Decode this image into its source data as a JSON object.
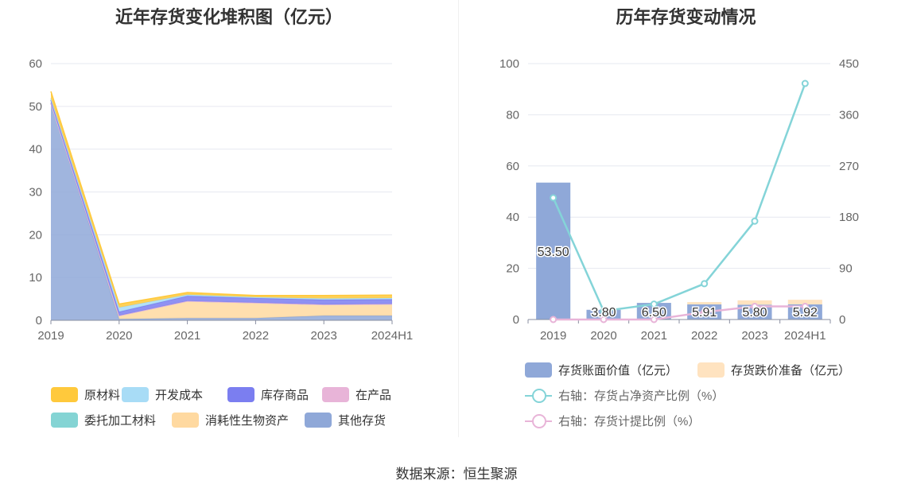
{
  "left": {
    "title": "近年存货变化堆积图（亿元）",
    "chart_data": {
      "type": "area",
      "stacked": true,
      "categories": [
        "2019",
        "2020",
        "2021",
        "2022",
        "2023",
        "2024H1"
      ],
      "ylim": [
        0,
        60
      ],
      "yticks": [
        0,
        10,
        20,
        30,
        40,
        50,
        60
      ],
      "grid": true,
      "legend_position": "bottom",
      "series": [
        {
          "name": "其他存货",
          "color": "#8fa8d8",
          "values": [
            50.8,
            0.3,
            0.5,
            0.5,
            1.1,
            1.1
          ]
        },
        {
          "name": "消耗性生物资产",
          "color": "#ffd9a0",
          "values": [
            0.0,
            0.8,
            4.0,
            3.6,
            2.6,
            2.7
          ]
        },
        {
          "name": "委托加工材料",
          "color": "#84d4d4",
          "values": [
            0.0,
            0.0,
            0.0,
            0.0,
            0.0,
            0.0
          ]
        },
        {
          "name": "在产品",
          "color": "#e8b4d8",
          "values": [
            0.0,
            0.0,
            0.0,
            0.0,
            0.0,
            0.0
          ]
        },
        {
          "name": "库存商品",
          "color": "#7b7ef0",
          "values": [
            0.7,
            0.9,
            1.2,
            1.1,
            1.1,
            1.1
          ]
        },
        {
          "name": "开发成本",
          "color": "#a8dcf6",
          "values": [
            0.4,
            1.0,
            0.3,
            0.2,
            0.3,
            0.3
          ]
        },
        {
          "name": "原材料",
          "color": "#ffc93c",
          "values": [
            1.6,
            0.8,
            0.5,
            0.4,
            0.7,
            0.7
          ]
        }
      ]
    },
    "legend": [
      "原材料",
      "开发成本",
      "库存商品",
      "在产品",
      "委托加工材料",
      "消耗性生物资产",
      "其他存货"
    ]
  },
  "right": {
    "title": "历年存货变动情况",
    "chart_data": {
      "type": "bar",
      "categories": [
        "2019",
        "2020",
        "2021",
        "2022",
        "2023",
        "2024H1"
      ],
      "ylim": [
        0,
        100
      ],
      "yticks": [
        0,
        20,
        40,
        60,
        80,
        100
      ],
      "y2lim": [
        0,
        450
      ],
      "y2ticks": [
        0,
        90,
        180,
        270,
        360,
        450
      ],
      "grid": true,
      "legend_position": "bottom",
      "series": [
        {
          "name": "存货账面价值（亿元）",
          "type": "bar",
          "color": "#8fa8d8",
          "values": [
            53.5,
            3.8,
            6.5,
            5.91,
            5.8,
            5.92
          ],
          "labels": [
            "53.50",
            "3.80",
            "6.50",
            "5.91",
            "5.80",
            "5.92"
          ]
        },
        {
          "name": "存货跌价准备（亿元）",
          "type": "bar",
          "color": "#ffe3c0",
          "values": [
            0.0,
            0.0,
            0.0,
            0.9,
            1.7,
            1.8
          ]
        },
        {
          "name": "右轴：存货占净资产比例（%）",
          "type": "line",
          "axis": "right",
          "color": "#84d4d8",
          "values": [
            214,
            15,
            27,
            63,
            173,
            415
          ]
        },
        {
          "name": "右轴：存货计提比例（%）",
          "type": "line",
          "axis": "right",
          "color": "#e8b4d8",
          "values": [
            0,
            0,
            0,
            13,
            23,
            23
          ]
        }
      ]
    }
  },
  "source": "数据来源：恒生聚源"
}
